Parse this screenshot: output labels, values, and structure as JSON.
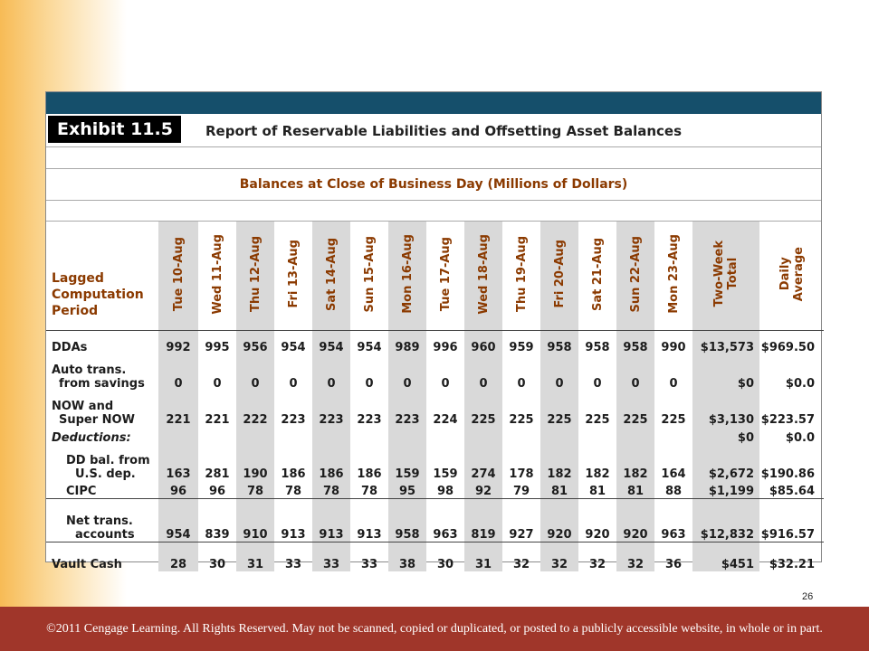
{
  "exhibit_label": "Exhibit 11.5",
  "report_title": "Report of Reservable Liabilities and Offsetting Asset Balances",
  "subtitle": "Balances at Close of Business Day (Millions of Dollars)",
  "period_label": [
    "Lagged",
    "Computation",
    "Period"
  ],
  "days": [
    "Tue 10-Aug",
    "Wed 11-Aug",
    "Thu 12-Aug",
    "Fri 13-Aug",
    "Sat 14-Aug",
    "Sun 15-Aug",
    "Mon 16-Aug",
    "Tue 17-Aug",
    "Wed 18-Aug",
    "Thu 19-Aug",
    "Fri 20-Aug",
    "Sat 21-Aug",
    "Sun 22-Aug",
    "Mon 23-Aug"
  ],
  "total_header": [
    "Two-Week",
    "Total"
  ],
  "average_header": [
    "Daily",
    "Average"
  ],
  "rows": [
    {
      "label": [
        "DDAs"
      ],
      "values": [
        "992",
        "995",
        "956",
        "954",
        "954",
        "954",
        "989",
        "996",
        "960",
        "959",
        "958",
        "958",
        "958",
        "990"
      ],
      "total": "$13,573",
      "average": "$969.50"
    },
    {
      "label": [
        "Auto trans.",
        "from savings"
      ],
      "values": [
        "0",
        "0",
        "0",
        "0",
        "0",
        "0",
        "0",
        "0",
        "0",
        "0",
        "0",
        "0",
        "0",
        "0"
      ],
      "total": "$0",
      "average": "$0.0"
    },
    {
      "label": [
        "NOW and",
        "Super NOW"
      ],
      "values": [
        "221",
        "221",
        "222",
        "223",
        "223",
        "223",
        "223",
        "224",
        "225",
        "225",
        "225",
        "225",
        "225",
        "225"
      ],
      "total": "$3,130",
      "average": "$223.57"
    },
    {
      "label": [
        "Deductions:"
      ],
      "italic": true,
      "values": [
        "",
        "",
        "",
        "",
        "",
        "",
        "",
        "",
        "",
        "",
        "",
        "",
        "",
        ""
      ],
      "total": "$0",
      "average": "$0.0"
    },
    {
      "label": [
        "DD bal. from",
        "U.S. dep."
      ],
      "values": [
        "163",
        "281",
        "190",
        "186",
        "186",
        "186",
        "159",
        "159",
        "274",
        "178",
        "182",
        "182",
        "182",
        "164"
      ],
      "total": "$2,672",
      "average": "$190.86"
    },
    {
      "label": [
        "CIPC"
      ],
      "values": [
        "96",
        "96",
        "78",
        "78",
        "78",
        "78",
        "95",
        "98",
        "92",
        "79",
        "81",
        "81",
        "81",
        "88"
      ],
      "total": "$1,199",
      "average": "$85.64"
    },
    {
      "label": [
        "Net trans.",
        "accounts"
      ],
      "values": [
        "954",
        "839",
        "910",
        "913",
        "913",
        "913",
        "958",
        "963",
        "819",
        "927",
        "920",
        "920",
        "920",
        "963"
      ],
      "total": "$12,832",
      "average": "$916.57"
    },
    {
      "label": [
        "Vault Cash"
      ],
      "values": [
        "28",
        "30",
        "31",
        "33",
        "33",
        "33",
        "38",
        "30",
        "31",
        "32",
        "32",
        "32",
        "32",
        "36"
      ],
      "total": "$451",
      "average": "$32.21"
    }
  ],
  "slide_number": "26",
  "footer": "©2011 Cengage Learning. All Rights Reserved. May not be scanned, copied or duplicated, or posted to a publicly accessible website, in whole or in part."
}
